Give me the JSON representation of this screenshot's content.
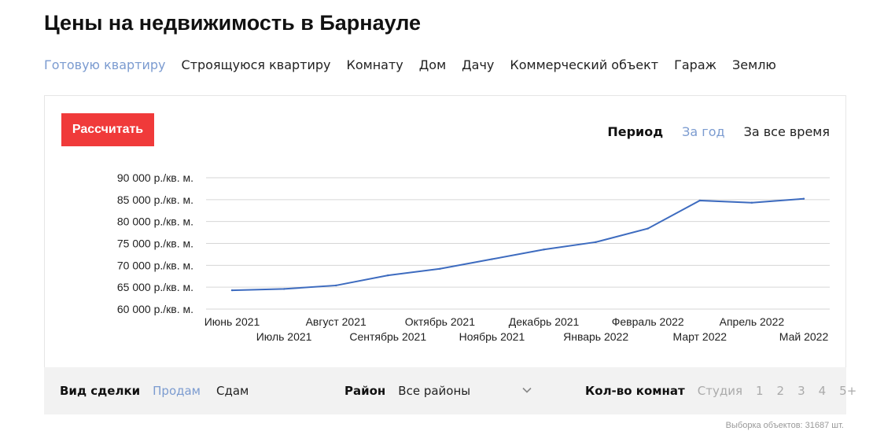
{
  "page": {
    "title": "Цены на недвижимость в Барнауле"
  },
  "property_types": [
    {
      "label": "Готовую квартиру",
      "active": true
    },
    {
      "label": "Строящуюся квартиру",
      "active": false
    },
    {
      "label": "Комнату",
      "active": false
    },
    {
      "label": "Дом",
      "active": false
    },
    {
      "label": "Дачу",
      "active": false
    },
    {
      "label": "Коммерческий объект",
      "active": false
    },
    {
      "label": "Гараж",
      "active": false
    },
    {
      "label": "Землю",
      "active": false
    }
  ],
  "calculate_button": "Рассчитать",
  "period": {
    "label": "Период",
    "options": [
      {
        "label": "За год",
        "active": true
      },
      {
        "label": "За все время",
        "active": false
      }
    ]
  },
  "chart_data": {
    "type": "line",
    "title": "",
    "xlabel": "",
    "ylabel": "",
    "categories": [
      "Июнь 2021",
      "Июль 2021",
      "Август 2021",
      "Сентябрь 2021",
      "Октябрь 2021",
      "Ноябрь 2021",
      "Декабрь 2021",
      "Январь 2022",
      "Февраль 2022",
      "Март 2022",
      "Апрель 2022",
      "Май 2022"
    ],
    "series": [
      {
        "values": [
          64300,
          64600,
          65400,
          67700,
          69200,
          71400,
          73600,
          75300,
          78400,
          84800,
          84300,
          85200
        ]
      }
    ],
    "ylim": [
      60000,
      90000
    ],
    "y_ticks": [
      "60 000 р./кв. м.",
      "65 000 р./кв. м.",
      "70 000 р./кв. м.",
      "75 000 р./кв. м.",
      "80 000 р./кв. м.",
      "85 000 р./кв. м.",
      "90 000 р./кв. м."
    ],
    "grid": true,
    "line_color": "#3d6bbf"
  },
  "filters": {
    "deal": {
      "label": "Вид сделки",
      "options": [
        {
          "label": "Продам",
          "active": true
        },
        {
          "label": "Сдам",
          "active": false
        }
      ]
    },
    "district": {
      "label": "Район",
      "value": "Все районы",
      "icon": "chevron-down-icon"
    },
    "rooms": {
      "label": "Кол-во комнат",
      "options": [
        "Студия",
        "1",
        "2",
        "3",
        "4",
        "5+"
      ]
    }
  },
  "sample_count": "Выборка объектов: 31687 шт.",
  "colors": {
    "accent_red": "#f03a3a",
    "active_link": "#7b9bd0",
    "filter_bg": "#f2f2f2"
  }
}
